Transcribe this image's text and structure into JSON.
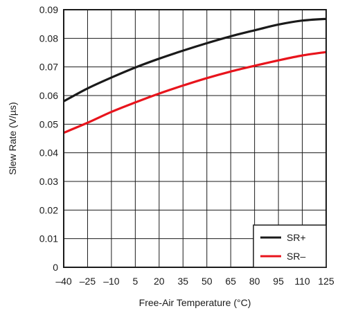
{
  "chart_data": {
    "type": "line",
    "title": "",
    "xlabel": "Free-Air Temperature (°C)",
    "ylabel": "Slew Rate (V/µs)",
    "xlim": [
      -40,
      125
    ],
    "ylim": [
      0,
      0.09
    ],
    "x_ticks": [
      -40,
      -25,
      -10,
      5,
      20,
      35,
      50,
      65,
      80,
      95,
      110,
      125
    ],
    "x_tick_labels": [
      "–40",
      "–25",
      "–10",
      "5",
      "20",
      "35",
      "50",
      "65",
      "80",
      "95",
      "110",
      "125"
    ],
    "y_ticks": [
      0,
      0.01,
      0.02,
      0.03,
      0.04,
      0.05,
      0.06,
      0.07,
      0.08,
      0.09
    ],
    "y_tick_labels": [
      "0",
      "0.01",
      "0.02",
      "0.03",
      "0.04",
      "0.05",
      "0.06",
      "0.07",
      "0.08",
      "0.09"
    ],
    "grid": true,
    "legend_position": "bottom-right",
    "x": [
      -40,
      -25,
      -10,
      5,
      20,
      35,
      50,
      65,
      80,
      95,
      110,
      125
    ],
    "series": [
      {
        "name": "SR+",
        "color": "#1a1a1a",
        "values": [
          0.058,
          0.0625,
          0.0663,
          0.0698,
          0.0729,
          0.0757,
          0.0783,
          0.0807,
          0.0828,
          0.0848,
          0.0862,
          0.0868
        ]
      },
      {
        "name": "SR–",
        "color": "#e8141c",
        "values": [
          0.047,
          0.0505,
          0.0543,
          0.0576,
          0.0607,
          0.0635,
          0.0661,
          0.0684,
          0.0704,
          0.0723,
          0.074,
          0.0752
        ]
      }
    ]
  }
}
